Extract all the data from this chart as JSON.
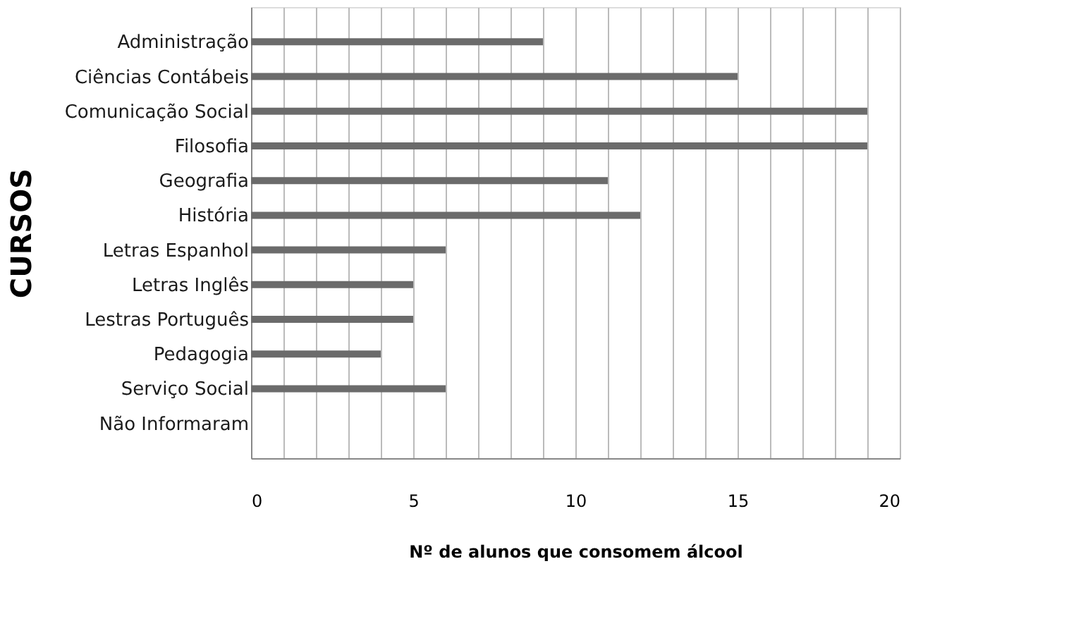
{
  "chart_data": {
    "type": "bar",
    "orientation": "horizontal",
    "ylabel": "CURSOS",
    "xlabel": "Nº de alunos que consomem álcool",
    "categories": [
      "Administração",
      "Ciências Contábeis",
      "Comunicação Social",
      "Filosofia",
      "Geografia",
      "História",
      "Letras Espanhol",
      "Letras Inglês",
      "Lestras Português",
      "Pedagogia",
      "Serviço Social",
      "Não Informaram"
    ],
    "values": [
      9,
      15,
      19,
      19,
      11,
      12,
      6,
      5,
      5,
      4,
      6,
      0
    ],
    "color": "#6b6b6b",
    "xlim": [
      0,
      20
    ],
    "xticks": [
      0,
      {
        "value": 1,
        "label": null
      },
      {
        "value": 2,
        "label": null
      },
      {
        "value": 3,
        "label": null
      },
      {
        "value": 4,
        "label": null
      },
      5,
      {
        "value": 6,
        "label": null
      },
      {
        "value": 7,
        "label": null
      },
      {
        "value": 8,
        "label": null
      },
      {
        "value": 9,
        "label": null
      },
      10,
      {
        "value": 11,
        "label": null
      },
      {
        "value": 12,
        "label": null
      },
      {
        "value": 13,
        "label": null
      },
      {
        "value": 14,
        "label": null
      },
      15,
      {
        "value": 16,
        "label": null
      },
      {
        "value": 17,
        "label": null
      },
      {
        "value": 18,
        "label": null
      },
      {
        "value": 19,
        "label": null
      },
      20
    ],
    "grid": "x"
  }
}
